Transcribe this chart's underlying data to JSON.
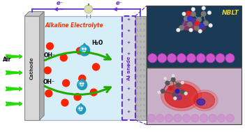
{
  "fig_width": 3.51,
  "fig_height": 1.89,
  "dpi": 100,
  "bg_color": "#ffffff",
  "cathode_color_light": "#d8d8d8",
  "cathode_color_dark": "#a0a0a0",
  "cathode_label": "Cathode",
  "air_label": "Air",
  "air_arrow_color": "#22dd00",
  "electrolyte_bg": "#d6eef8",
  "electrolyte_label": "Alkaline Electrolyte",
  "electrolyte_label_color": "#ff3300",
  "oh_label": "OH⁻",
  "h2o_label": "H₂O",
  "oh_dot_color": "#ff2200",
  "water_color_dark": "#2299bb",
  "water_color_light": "#44bbdd",
  "anode_label": "Al anode",
  "anode_label_color": "#6633cc",
  "anode_strip_color": "#bbbbcc",
  "anode_slab_color": "#bbbbbb",
  "circuit_color": "#6633cc",
  "electron_label": "e⁻",
  "electron_color": "#6633cc",
  "arrow_color": "#22aa00",
  "nblt_top_bg": "#1a3a55",
  "nblt_bot_bg": "#c8b0c8",
  "nblt_label": "NBLT",
  "nblt_label_color": "#eecc22",
  "xlim": [
    0,
    10.5
  ],
  "ylim": [
    0,
    5.55
  ]
}
